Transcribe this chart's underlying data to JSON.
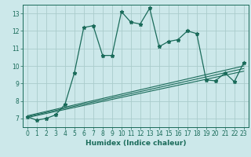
{
  "title": "",
  "xlabel": "Humidex (Indice chaleur)",
  "bg_color": "#cce8ea",
  "grid_color": "#aacccc",
  "line_color": "#1a6b5a",
  "xlim": [
    -0.5,
    23.5
  ],
  "ylim": [
    6.5,
    13.5
  ],
  "xticks": [
    0,
    1,
    2,
    3,
    4,
    5,
    6,
    7,
    8,
    9,
    10,
    11,
    12,
    13,
    14,
    15,
    16,
    17,
    18,
    19,
    20,
    21,
    22,
    23
  ],
  "yticks": [
    7,
    8,
    9,
    10,
    11,
    12,
    13
  ],
  "main_series_x": [
    0,
    1,
    2,
    3,
    4,
    5,
    6,
    7,
    8,
    9,
    10,
    11,
    12,
    13,
    14,
    15,
    16,
    17,
    18,
    19,
    20,
    21,
    22,
    23
  ],
  "main_series_y": [
    7.1,
    6.9,
    7.0,
    7.2,
    7.8,
    9.6,
    12.2,
    12.3,
    10.6,
    10.6,
    13.1,
    12.5,
    12.4,
    13.3,
    11.1,
    11.4,
    11.5,
    12.0,
    11.85,
    9.2,
    9.15,
    9.6,
    9.1,
    10.2
  ],
  "linear_lines": [
    {
      "x": [
        0,
        23
      ],
      "y": [
        7.05,
        9.7
      ]
    },
    {
      "x": [
        0,
        23
      ],
      "y": [
        7.1,
        9.85
      ]
    },
    {
      "x": [
        0,
        23
      ],
      "y": [
        7.15,
        10.0
      ]
    }
  ],
  "tick_fontsize": 5.5,
  "xlabel_fontsize": 6.5
}
